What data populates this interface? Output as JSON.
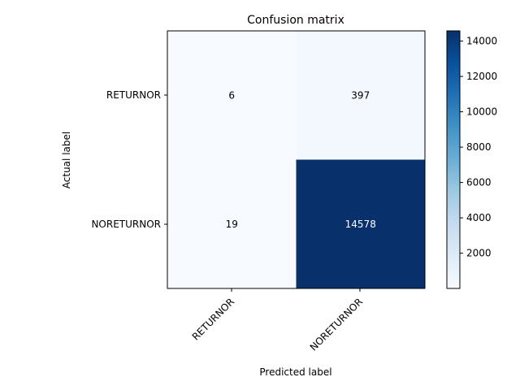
{
  "chart_data": {
    "type": "heatmap",
    "title": "Confusion matrix",
    "xlabel": "Predicted label",
    "ylabel": "Actual label",
    "x_categories": [
      "RETURNOR",
      "NORETURNOR"
    ],
    "y_categories": [
      "RETURNOR",
      "NORETURNOR"
    ],
    "values": [
      [
        6,
        397
      ],
      [
        19,
        14578
      ]
    ],
    "colormap": "Blues",
    "colorbar": {
      "range": [
        6,
        14578
      ],
      "ticks": [
        2000,
        4000,
        6000,
        8000,
        10000,
        12000,
        14000
      ]
    },
    "grid": false
  }
}
